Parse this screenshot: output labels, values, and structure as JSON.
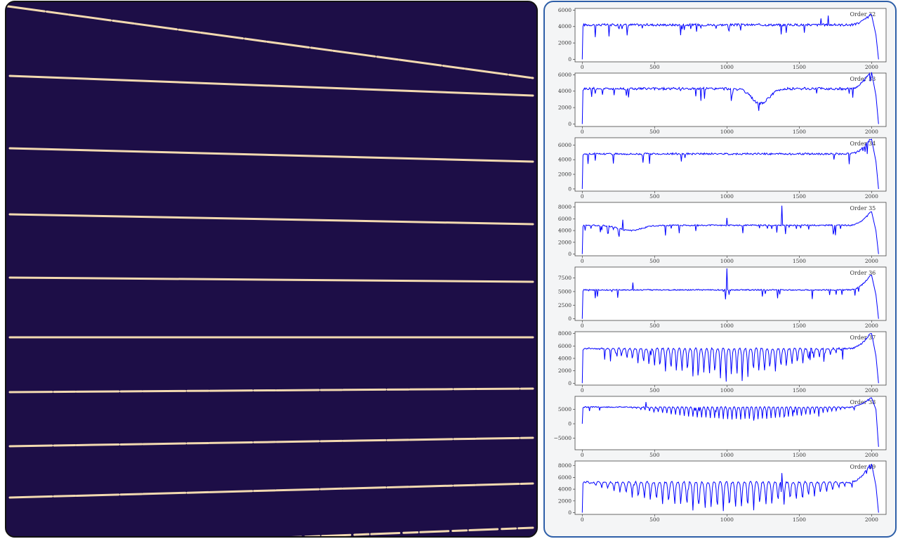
{
  "panels": {
    "left": {
      "type": "spectral-image",
      "colors": {
        "background": "#1d0e47",
        "trace": "#f2d9b0"
      }
    },
    "right": {
      "colors": {
        "line": "#0000ff",
        "frame": "#2e5fa8",
        "plot_border": "#444444"
      },
      "x_tick_labels": [
        "0",
        "500",
        "1000",
        "1500",
        "2000"
      ]
    }
  },
  "chart_data": [
    {
      "type": "line",
      "title": "Order 32",
      "xlim": [
        -50,
        2100
      ],
      "ylim": [
        -300,
        6200
      ],
      "yticks": [
        0,
        2000,
        4000,
        6000
      ],
      "ytick_labels": [
        "0",
        "2000",
        "4000",
        "6000"
      ],
      "profile": {
        "base": 4200,
        "dip": null,
        "bumps": [
          [
            1650,
            800
          ],
          [
            1700,
            1200
          ]
        ],
        "noise": 280,
        "end_peak": 5400,
        "absorption": false
      }
    },
    {
      "type": "line",
      "title": "Order 33",
      "xlim": [
        -50,
        2100
      ],
      "ylim": [
        -300,
        6200
      ],
      "yticks": [
        0,
        2000,
        4000,
        6000
      ],
      "ytick_labels": [
        "0",
        "2000",
        "4000",
        "6000"
      ],
      "profile": {
        "base": 4300,
        "dip": [
          1230,
          60,
          1800
        ],
        "bumps": [],
        "noise": 320,
        "end_peak": 6300,
        "absorption": false
      }
    },
    {
      "type": "line",
      "title": "Order 34",
      "xlim": [
        -50,
        2100
      ],
      "ylim": [
        -300,
        7000
      ],
      "yticks": [
        0,
        2000,
        4000,
        6000
      ],
      "ytick_labels": [
        "0",
        "2000",
        "4000",
        "6000"
      ],
      "profile": {
        "base": 4800,
        "dip": null,
        "bumps": [],
        "noise": 250,
        "end_peak": 6800,
        "absorption": false
      }
    },
    {
      "type": "line",
      "title": "Order 35",
      "xlim": [
        -50,
        2100
      ],
      "ylim": [
        -300,
        8800
      ],
      "yticks": [
        0,
        2000,
        4000,
        6000,
        8000
      ],
      "ytick_labels": [
        "0",
        "2000",
        "4000",
        "6000",
        "8000"
      ],
      "profile": {
        "base": 4900,
        "dip": [
          330,
          80,
          900
        ],
        "bumps": [
          [
            1380,
            3400
          ],
          [
            1000,
            1200
          ],
          [
            280,
            1600
          ]
        ],
        "noise": 220,
        "end_peak": 7200,
        "absorption": false
      }
    },
    {
      "type": "line",
      "title": "Order 36",
      "xlim": [
        -50,
        2100
      ],
      "ylim": [
        -300,
        9500
      ],
      "yticks": [
        0,
        2500,
        5000,
        7500
      ],
      "ytick_labels": [
        "0",
        "2500",
        "5000",
        "7500"
      ],
      "profile": {
        "base": 5300,
        "dip": null,
        "bumps": [
          [
            1000,
            4000
          ],
          [
            350,
            1300
          ]
        ],
        "noise": 220,
        "end_peak": 8000,
        "absorption": false
      }
    },
    {
      "type": "line",
      "title": "Order 37",
      "xlim": [
        -50,
        2100
      ],
      "ylim": [
        -300,
        8300
      ],
      "yticks": [
        0,
        2000,
        4000,
        6000,
        8000
      ],
      "ytick_labels": [
        "0",
        "2000",
        "4000",
        "6000",
        "8000"
      ],
      "profile": {
        "base": 5600,
        "dip": null,
        "bumps": [],
        "noise": 250,
        "end_peak": 8000,
        "absorption": true,
        "abs_start": 100,
        "abs_end": 1820,
        "abs_period": 38,
        "abs_depth": 4800
      }
    },
    {
      "type": "line",
      "title": "Order 38",
      "xlim": [
        -50,
        2100
      ],
      "ylim": [
        -9000,
        9500
      ],
      "yticks": [
        -5000,
        0,
        5000
      ],
      "ytick_labels": [
        "−5000",
        "0",
        "5000"
      ],
      "profile": {
        "base": 5800,
        "dip": null,
        "bumps": [
          [
            440,
            2200
          ]
        ],
        "noise": 350,
        "end_peak": 9000,
        "absorption": true,
        "abs_start": 300,
        "abs_end": 1900,
        "abs_period": 30,
        "abs_depth": 4200,
        "end_drop": -8000
      }
    },
    {
      "type": "line",
      "title": "Order 39",
      "xlim": [
        -50,
        2100
      ],
      "ylim": [
        -300,
        8800
      ],
      "yticks": [
        0,
        2000,
        4000,
        6000,
        8000
      ],
      "ytick_labels": [
        "0",
        "2000",
        "4000",
        "6000",
        "8000"
      ],
      "profile": {
        "base": 5200,
        "dip": null,
        "bumps": [
          [
            1380,
            1500
          ]
        ],
        "noise": 300,
        "end_peak": 8300,
        "absorption": true,
        "abs_start": 30,
        "abs_end": 1900,
        "abs_period": 42,
        "abs_depth": 5000
      }
    }
  ]
}
